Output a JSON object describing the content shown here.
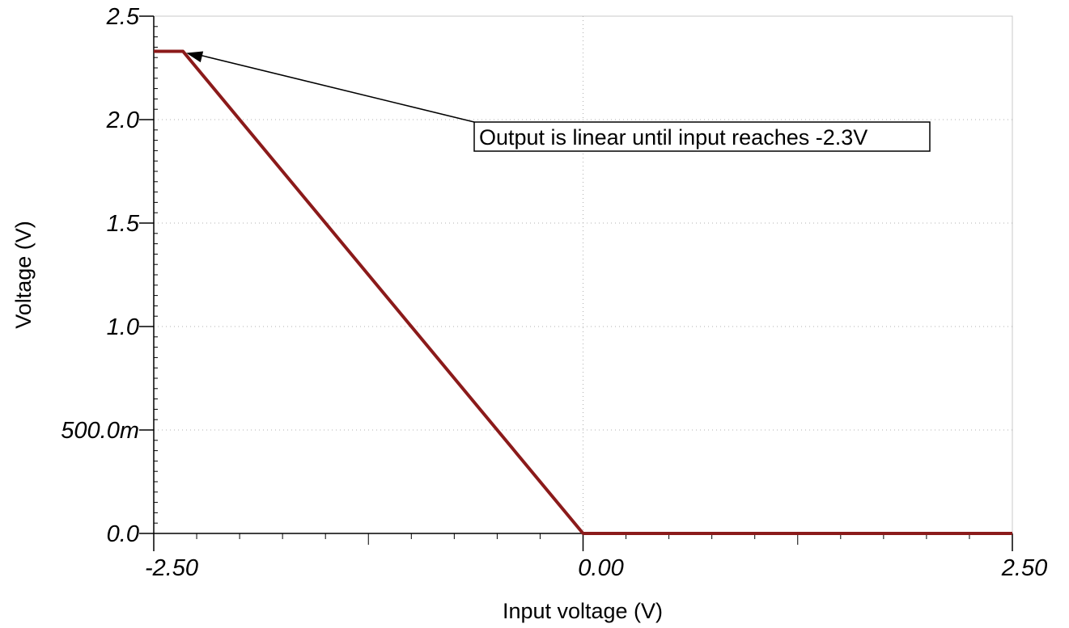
{
  "chart_data": {
    "type": "line",
    "title": "",
    "xlabel": "Input voltage (V)",
    "ylabel": "Voltage (V)",
    "xlim": [
      -2.5,
      2.5
    ],
    "ylim": [
      0,
      2.5
    ],
    "x_ticks": [
      {
        "value": -2.5,
        "label": "-2.50"
      },
      {
        "value": 0.0,
        "label": "0.00"
      },
      {
        "value": 2.5,
        "label": "2.50"
      }
    ],
    "y_ticks": [
      {
        "value": 0.0,
        "label": "0.0"
      },
      {
        "value": 0.5,
        "label": "500.0m"
      },
      {
        "value": 1.0,
        "label": "1.0"
      },
      {
        "value": 1.5,
        "label": "1.5"
      },
      {
        "value": 2.0,
        "label": "2.0"
      },
      {
        "value": 2.5,
        "label": "2.5"
      }
    ],
    "grid": true,
    "series": [
      {
        "color": "#8b1a1a",
        "x": [
          -2.5,
          -2.33,
          0.0,
          2.5
        ],
        "y": [
          2.33,
          2.33,
          0.0,
          0.0
        ]
      }
    ],
    "annotations": [
      {
        "text": "Output is linear until input reaches -2.3V",
        "arrow_to": {
          "x": -2.33,
          "y": 2.33
        }
      }
    ]
  }
}
